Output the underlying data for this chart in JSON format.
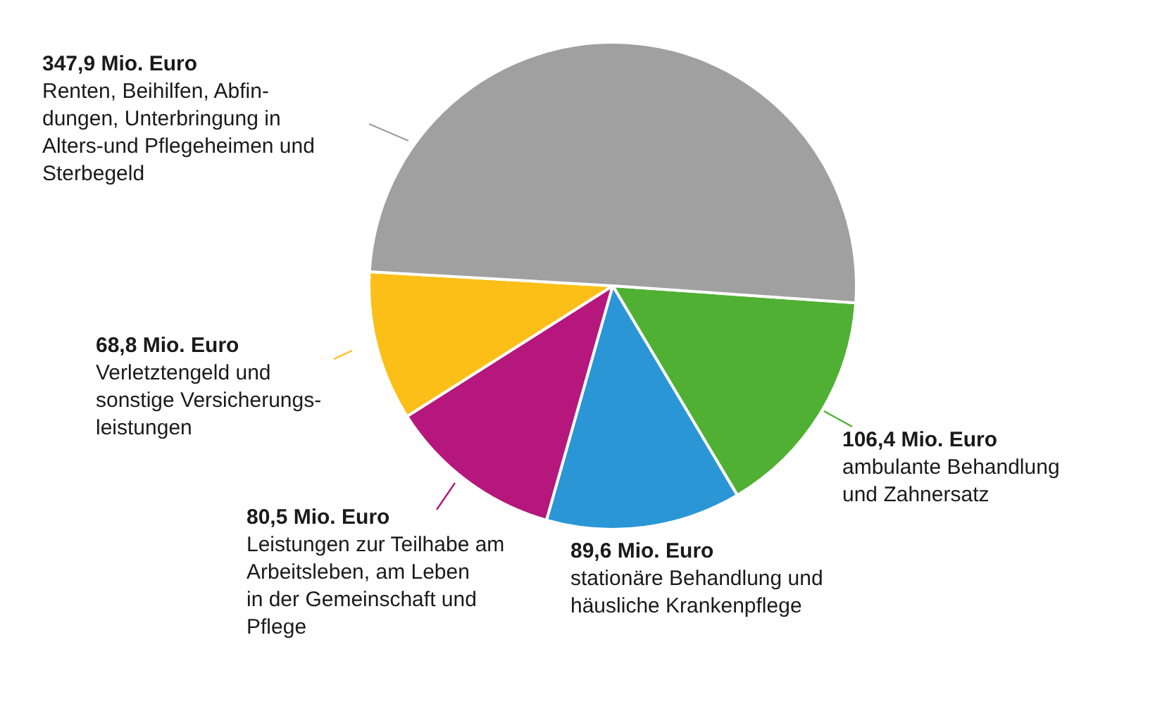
{
  "chart_data": {
    "type": "pie",
    "categories": [
      "ambulante Behandlung\nund Zahnersatz",
      "stationäre Behandlung und\nhäusliche Krankenpflege",
      "Leistungen zur Teilhabe am\nArbeitsleben, am Leben\nin der Gemeinschaft und\nPflege",
      "Verletztengeld und\nsonstige Versicherungs-\nleistungen",
      "Renten, Beihilfen, Abfin-\ndungen, Unterbringung in\nAlters-und Pflegeheimen und\nSterbegeld"
    ],
    "values": [
      106.4,
      89.6,
      80.5,
      68.8,
      347.9
    ],
    "value_labels": [
      "106,4 Mio. Euro",
      "89,6 Mio. Euro",
      "80,5 Mio. Euro",
      "68,8 Mio. Euro",
      "347,9 Mio. Euro"
    ],
    "colors": [
      "#50b033",
      "#2a96d6",
      "#b5177c",
      "#fbbf17",
      "#a0a0a0"
    ]
  }
}
